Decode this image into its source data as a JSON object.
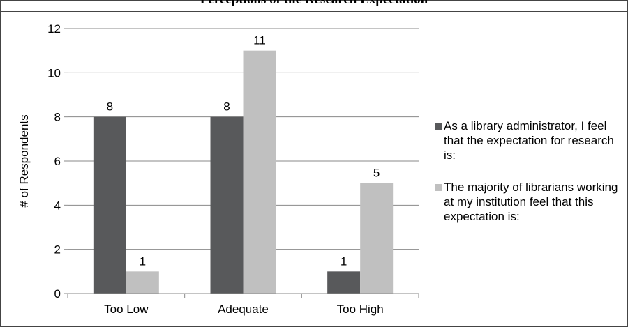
{
  "header": {
    "title": "Perceptions of the Research Expectation"
  },
  "chart_data": {
    "type": "bar",
    "categories": [
      "Too Low",
      "Adequate",
      "Too High"
    ],
    "series": [
      {
        "name": "As a library administrator, I feel that the expectation for research is:",
        "values": [
          8,
          8,
          1
        ],
        "color": "#58595b"
      },
      {
        "name": "The majority of librarians working at my institution feel that this expectation is:",
        "values": [
          1,
          11,
          5
        ],
        "color": "#c0c0c0"
      }
    ],
    "ylabel": "# of Respondents",
    "xlabel": "",
    "ylim": [
      0,
      12
    ],
    "yticks": [
      0,
      2,
      4,
      6,
      8,
      10,
      12
    ],
    "grid": true,
    "legend_position": "right",
    "data_labels": true
  }
}
